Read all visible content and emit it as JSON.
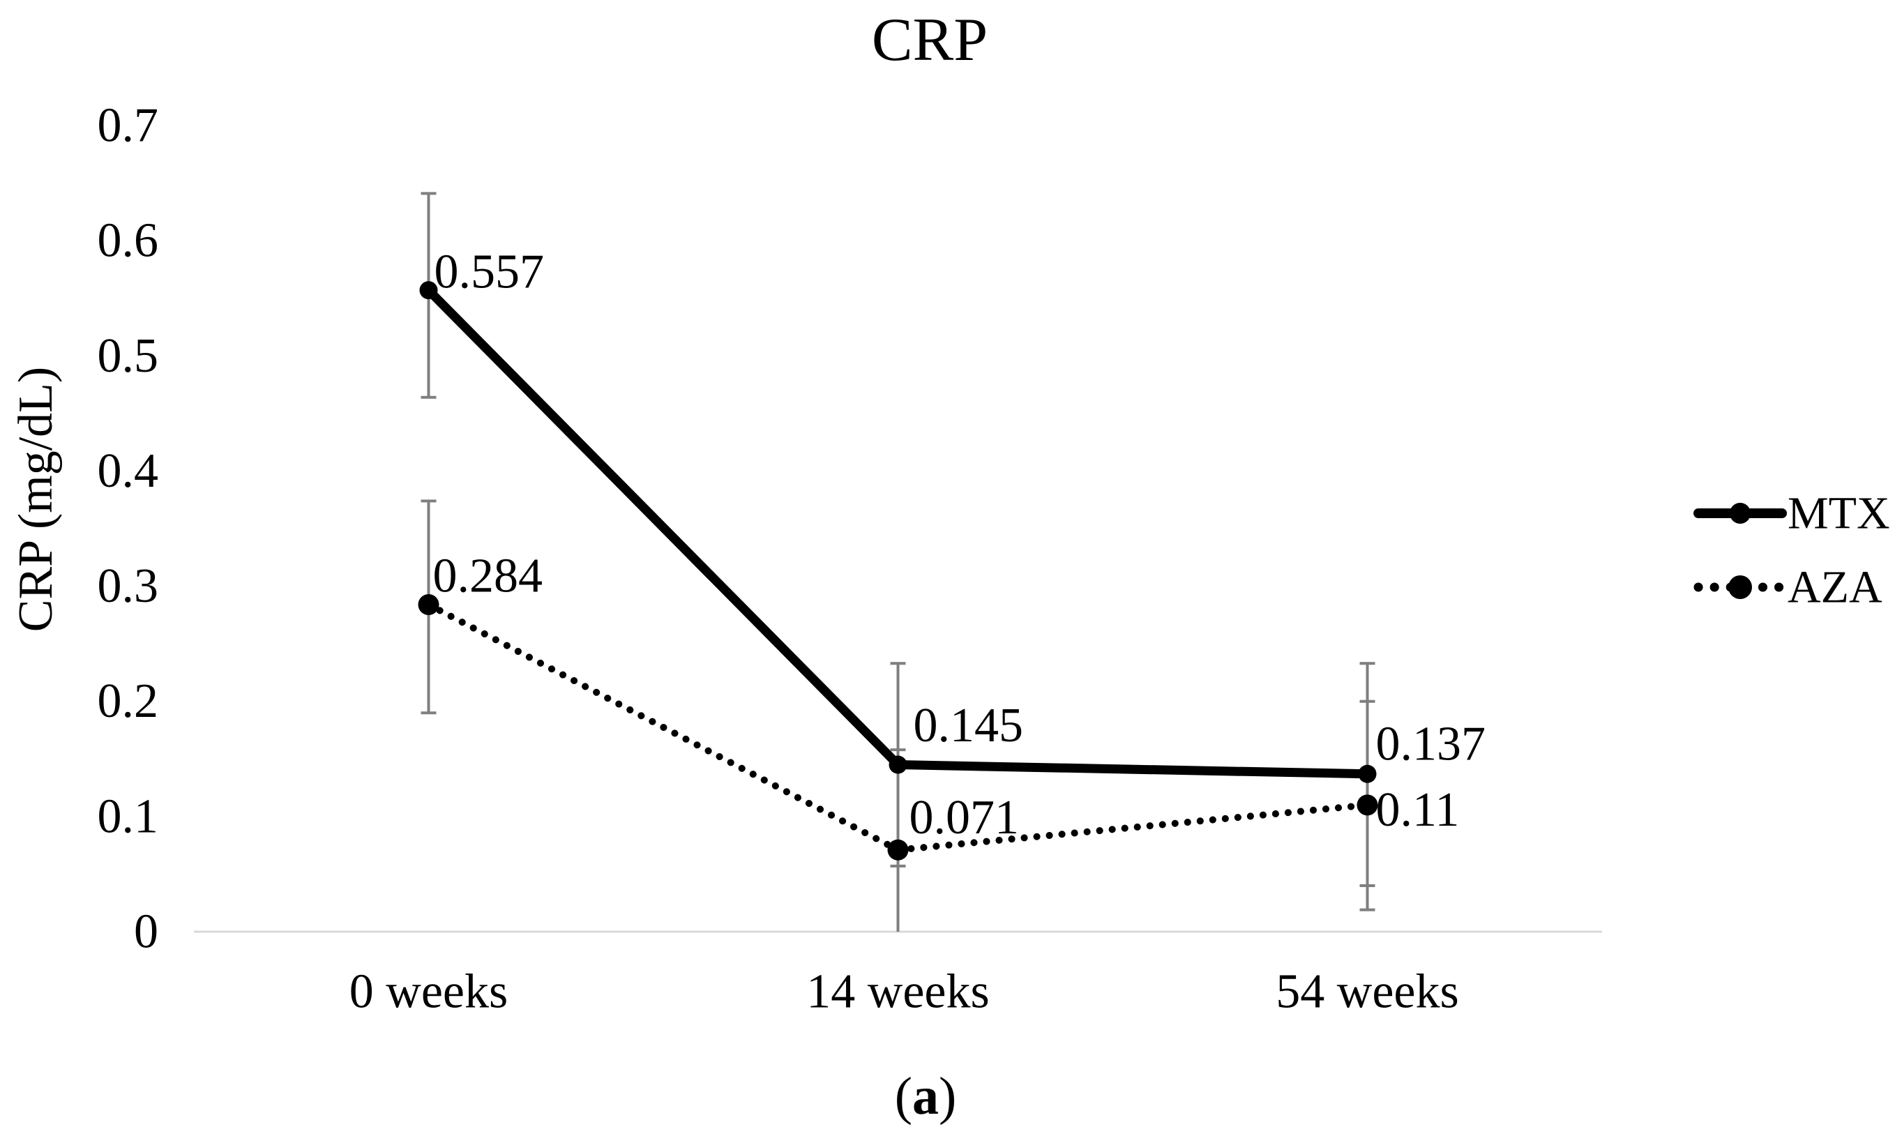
{
  "figure": {
    "caption_open": "(",
    "caption_letter": "a",
    "caption_close": ")"
  },
  "chart_data": {
    "type": "line",
    "title": "CRP",
    "xlabel": "",
    "ylabel": "CRP (mg/dL)",
    "categories": [
      "0 weeks",
      "14 weeks",
      "54 weeks"
    ],
    "ylim": [
      0,
      0.7
    ],
    "yticks": [
      0,
      0.1,
      0.2,
      0.3,
      0.4,
      0.5,
      0.6,
      0.7
    ],
    "ytick_labels": [
      "0",
      "0.1",
      "0.2",
      "0.3",
      "0.4",
      "0.5",
      "0.6",
      "0.7"
    ],
    "grid": false,
    "legend_position": "right",
    "legend_entries": [
      "MTX",
      "AZA"
    ],
    "series": [
      {
        "name": "MTX",
        "line_style": "solid",
        "marker": "circle",
        "color": "#000000",
        "values": [
          0.557,
          0.145,
          0.137
        ],
        "labels": [
          "0.557",
          "0.145",
          "0.137"
        ],
        "error_upper": [
          0.641,
          0.233,
          0.233
        ],
        "error_lower": [
          0.464,
          0.057,
          0.04
        ]
      },
      {
        "name": "AZA",
        "line_style": "dotted",
        "marker": "circle",
        "color": "#000000",
        "values": [
          0.284,
          0.071,
          0.11
        ],
        "labels": [
          "0.284",
          "0.071",
          "0.11"
        ],
        "error_upper": [
          0.374,
          0.158,
          0.2
        ],
        "error_lower": [
          0.19,
          -0.015,
          0.019
        ]
      }
    ],
    "error_bar_color": "#7f7f7f",
    "axis_line_color": "#d9d9d9",
    "background_color": "#ffffff"
  }
}
